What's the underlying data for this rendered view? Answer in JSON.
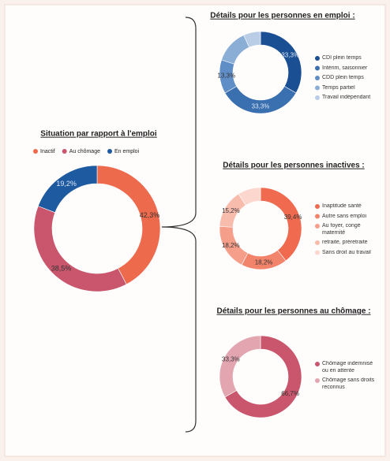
{
  "chart_data": [
    {
      "type": "donut",
      "title": "Situation par rapport à l'emploi",
      "categories": [
        "Inactif",
        "Au chômage",
        "En emploi"
      ],
      "values": [
        42.3,
        38.5,
        19.2
      ],
      "value_labels": [
        "42,3%",
        "38,5%",
        "19,2%"
      ],
      "colors": [
        "#ee6a4d",
        "#c9566c",
        "#1d5aa0"
      ]
    },
    {
      "type": "donut",
      "title": "Détails pour les personnes en emploi :",
      "categories": [
        "CDI plein temps",
        "Intérim, saisonnier",
        "CDD plein temps",
        "Temps partiel",
        "Travail indépendant"
      ],
      "values": [
        33.3,
        33.3,
        13.3,
        13.3,
        6.7
      ],
      "value_labels": [
        "33,3%",
        "33,3%",
        "13,3%",
        null,
        null
      ],
      "colors": [
        "#1a4f94",
        "#3a6fb0",
        "#5f8ec6",
        "#8aaed6",
        "#b9cde6"
      ]
    },
    {
      "type": "donut",
      "title": "Détails pour les personnes inactives :",
      "categories": [
        "Inaptitude santé",
        "Autre sans emploi",
        "Au foyer, congé maternité",
        "retraite, préretraite",
        "Sans droit au travail"
      ],
      "values": [
        39.4,
        18.2,
        18.2,
        15.2,
        9.0
      ],
      "value_labels": [
        "39,4%",
        "18,2%",
        "18,2%",
        "15,2%",
        null
      ],
      "colors": [
        "#ef6a4f",
        "#f2846b",
        "#f59f8b",
        "#f8bcad",
        "#fbd7cd"
      ]
    },
    {
      "type": "donut",
      "title": "Détails pour les personnes au chômage :",
      "categories": [
        "Chômage indemnisé ou en attente",
        "Chômage sans droits reconnus"
      ],
      "values": [
        66.7,
        33.3
      ],
      "value_labels": [
        "66,7%",
        "33,3%"
      ],
      "colors": [
        "#c9566c",
        "#e3a5b0"
      ]
    }
  ]
}
